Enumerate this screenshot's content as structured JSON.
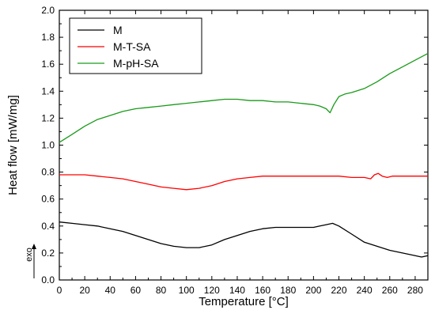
{
  "chart_data": {
    "type": "line",
    "xlabel": "Temperature [°C]",
    "ylabel": "Heat flow [mW/mg]",
    "xlim": [
      0,
      290
    ],
    "ylim": [
      0.0,
      2.0
    ],
    "xticks": [
      0,
      20,
      40,
      60,
      80,
      100,
      120,
      140,
      160,
      180,
      200,
      220,
      240,
      260,
      280
    ],
    "yticks": [
      0.0,
      0.2,
      0.4,
      0.6,
      0.8,
      1.0,
      1.2,
      1.4,
      1.6,
      1.8,
      2.0
    ],
    "yticks_text": [
      "0.0",
      "0.2",
      "0.4",
      "0.6",
      "0.8",
      "1.0",
      "1.2",
      "1.4",
      "1.6",
      "1.8",
      "2.0"
    ],
    "grid": false,
    "legend_position": "top-left",
    "annotation": {
      "text": "exo",
      "arrow": "up"
    },
    "series": [
      {
        "name": "M",
        "color": "#000000",
        "x": [
          0,
          10,
          20,
          30,
          40,
          50,
          60,
          70,
          80,
          90,
          100,
          110,
          120,
          130,
          140,
          150,
          160,
          170,
          180,
          190,
          200,
          205,
          210,
          215,
          220,
          230,
          240,
          250,
          260,
          270,
          280,
          285,
          290
        ],
        "y": [
          0.43,
          0.42,
          0.41,
          0.4,
          0.38,
          0.36,
          0.33,
          0.3,
          0.27,
          0.25,
          0.24,
          0.24,
          0.26,
          0.3,
          0.33,
          0.36,
          0.38,
          0.39,
          0.39,
          0.39,
          0.39,
          0.4,
          0.41,
          0.42,
          0.4,
          0.34,
          0.28,
          0.25,
          0.22,
          0.2,
          0.18,
          0.17,
          0.18
        ]
      },
      {
        "name": "M-T-SA",
        "color": "#ff0000",
        "x": [
          0,
          10,
          20,
          30,
          40,
          50,
          60,
          70,
          80,
          90,
          100,
          110,
          120,
          130,
          140,
          150,
          160,
          170,
          180,
          190,
          200,
          210,
          220,
          230,
          240,
          245,
          248,
          251,
          254,
          258,
          262,
          270,
          280,
          290
        ],
        "y": [
          0.78,
          0.78,
          0.78,
          0.77,
          0.76,
          0.75,
          0.73,
          0.71,
          0.69,
          0.68,
          0.67,
          0.68,
          0.7,
          0.73,
          0.75,
          0.76,
          0.77,
          0.77,
          0.77,
          0.77,
          0.77,
          0.77,
          0.77,
          0.76,
          0.76,
          0.75,
          0.78,
          0.79,
          0.77,
          0.76,
          0.77,
          0.77,
          0.77,
          0.77
        ]
      },
      {
        "name": "M-pH-SA",
        "color": "#1a9a1a",
        "x": [
          0,
          10,
          20,
          30,
          40,
          50,
          60,
          70,
          80,
          90,
          100,
          110,
          120,
          130,
          140,
          150,
          160,
          170,
          180,
          190,
          200,
          205,
          210,
          213,
          216,
          220,
          225,
          230,
          240,
          250,
          260,
          270,
          280,
          290
        ],
        "y": [
          1.02,
          1.08,
          1.14,
          1.19,
          1.22,
          1.25,
          1.27,
          1.28,
          1.29,
          1.3,
          1.31,
          1.32,
          1.33,
          1.34,
          1.34,
          1.33,
          1.33,
          1.32,
          1.32,
          1.31,
          1.3,
          1.29,
          1.27,
          1.24,
          1.3,
          1.36,
          1.38,
          1.39,
          1.42,
          1.47,
          1.53,
          1.58,
          1.63,
          1.68
        ]
      }
    ]
  }
}
